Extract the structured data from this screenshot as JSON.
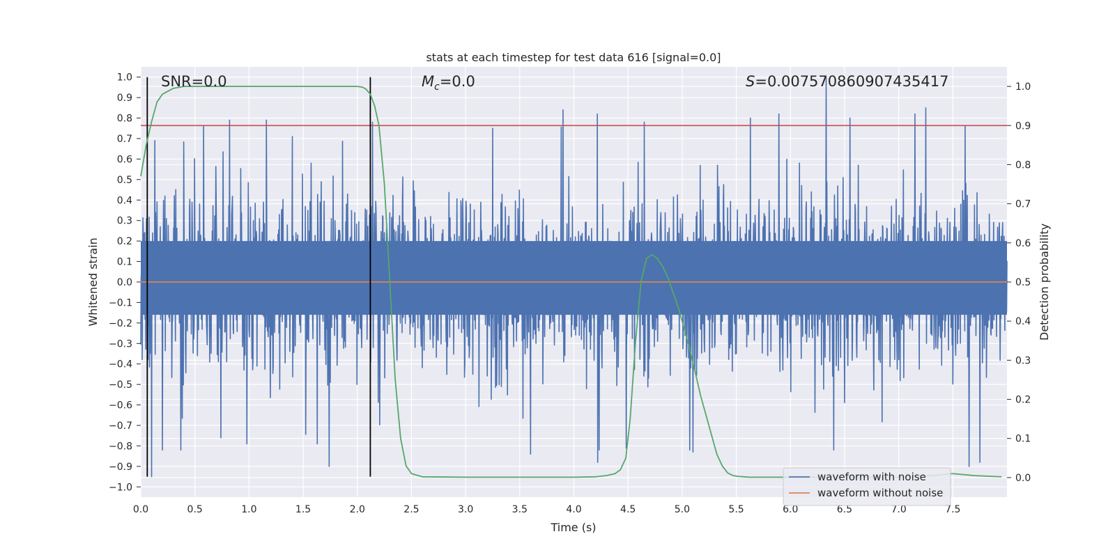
{
  "chart_data": {
    "type": "line",
    "title": "stats at each timestep for test data 616 [signal=0.0]",
    "xlabel": "Time (s)",
    "ylabel": "Whitened strain",
    "ylabel_right": "Detection probability",
    "xlim": [
      0,
      8
    ],
    "ylim": [
      -1.05,
      1.05
    ],
    "ylim_right": [
      -0.05,
      1.05
    ],
    "x_ticks": [
      "0.0",
      "0.5",
      "1.0",
      "1.5",
      "2.0",
      "2.5",
      "3.0",
      "3.5",
      "4.0",
      "4.5",
      "5.0",
      "5.5",
      "6.0",
      "6.5",
      "7.0",
      "7.5"
    ],
    "y_ticks": [
      "1.0",
      "0.9",
      "0.8",
      "0.7",
      "0.6",
      "0.5",
      "0.4",
      "0.3",
      "0.2",
      "0.1",
      "0.0",
      "-0.1",
      "-0.2",
      "-0.3",
      "-0.4",
      "-0.5",
      "-0.6",
      "-0.7",
      "-0.8",
      "-0.9",
      "-1.0"
    ],
    "y_ticks_right": [
      "1.0",
      "0.9",
      "0.8",
      "0.7",
      "0.6",
      "0.5",
      "0.4",
      "0.3",
      "0.2",
      "0.1",
      "0.0"
    ],
    "grid": true,
    "legend_placement": "lower-right",
    "annotations": {
      "snr": "SNR=0.0",
      "mc_symbol": "M",
      "mc_sub": "c",
      "mc_value": "=0.0",
      "s_symbol": "S",
      "s_value": "=0.007570860907435417"
    },
    "threshold_right": 0.9,
    "vlines_x": [
      0.06,
      2.12
    ],
    "vline_ymin": -0.95,
    "vline_ymax": 1.0,
    "series": [
      {
        "name": "waveform with noise",
        "color": "#4c72b0",
        "description_envelope": "noisy strain, bulk within ±0.35, spikes up to 1.0",
        "spikes": [
          {
            "x": 0.1,
            "y": -0.95
          },
          {
            "x": 0.13,
            "y": 0.69
          },
          {
            "x": 0.58,
            "y": 0.76
          },
          {
            "x": 0.74,
            "y": -0.76
          },
          {
            "x": 0.82,
            "y": 0.79
          },
          {
            "x": 0.98,
            "y": -0.79
          },
          {
            "x": 1.16,
            "y": 0.79
          },
          {
            "x": 1.4,
            "y": 0.71
          },
          {
            "x": 1.63,
            "y": -0.79
          },
          {
            "x": 1.74,
            "y": -0.9
          },
          {
            "x": 2.14,
            "y": 0.78
          },
          {
            "x": 3.25,
            "y": 0.75
          },
          {
            "x": 3.6,
            "y": -0.84
          },
          {
            "x": 3.9,
            "y": 0.84
          },
          {
            "x": 4.22,
            "y": -0.88
          },
          {
            "x": 4.65,
            "y": 0.78
          },
          {
            "x": 5.1,
            "y": -0.83
          },
          {
            "x": 5.63,
            "y": 0.8
          },
          {
            "x": 6.33,
            "y": 1.0
          },
          {
            "x": 6.55,
            "y": 0.8
          },
          {
            "x": 7.15,
            "y": 0.82
          },
          {
            "x": 7.25,
            "y": 0.85
          },
          {
            "x": 7.65,
            "y": -0.9
          },
          {
            "x": 7.75,
            "y": -0.88
          }
        ]
      },
      {
        "name": "waveform without noise",
        "color": "#dd8452",
        "x": [
          0,
          8
        ],
        "y": [
          0,
          0
        ]
      },
      {
        "name": "",
        "color": "#55a868",
        "axis": "right",
        "x": [
          0,
          0.05,
          0.1,
          0.15,
          0.2,
          0.3,
          0.4,
          0.6,
          1.0,
          1.5,
          1.9,
          2.0,
          2.05,
          2.08,
          2.12,
          2.16,
          2.2,
          2.25,
          2.3,
          2.35,
          2.4,
          2.45,
          2.5,
          2.6,
          3.0,
          3.5,
          4.0,
          4.2,
          4.3,
          4.38,
          4.43,
          4.48,
          4.52,
          4.57,
          4.62,
          4.67,
          4.72,
          4.77,
          4.82,
          4.87,
          4.92,
          4.97,
          5.02,
          5.07,
          5.12,
          5.17,
          5.22,
          5.27,
          5.32,
          5.37,
          5.42,
          5.47,
          5.52,
          5.57,
          5.62,
          5.7,
          6.0,
          6.5,
          7.0,
          7.3,
          7.5,
          7.7,
          7.95
        ],
        "y": [
          0.77,
          0.85,
          0.91,
          0.96,
          0.98,
          0.995,
          1.0,
          1.0,
          1.0,
          1.0,
          1.0,
          1.0,
          0.998,
          0.993,
          0.98,
          0.95,
          0.9,
          0.75,
          0.5,
          0.25,
          0.1,
          0.03,
          0.01,
          0.002,
          0.001,
          0.001,
          0.001,
          0.002,
          0.005,
          0.01,
          0.02,
          0.05,
          0.15,
          0.35,
          0.5,
          0.56,
          0.57,
          0.56,
          0.54,
          0.51,
          0.47,
          0.43,
          0.38,
          0.33,
          0.27,
          0.21,
          0.16,
          0.11,
          0.06,
          0.03,
          0.012,
          0.005,
          0.003,
          0.002,
          0.001,
          0.001,
          0.001,
          0.001,
          0.001,
          0.005,
          0.01,
          0.005,
          0.002
        ]
      }
    ]
  }
}
